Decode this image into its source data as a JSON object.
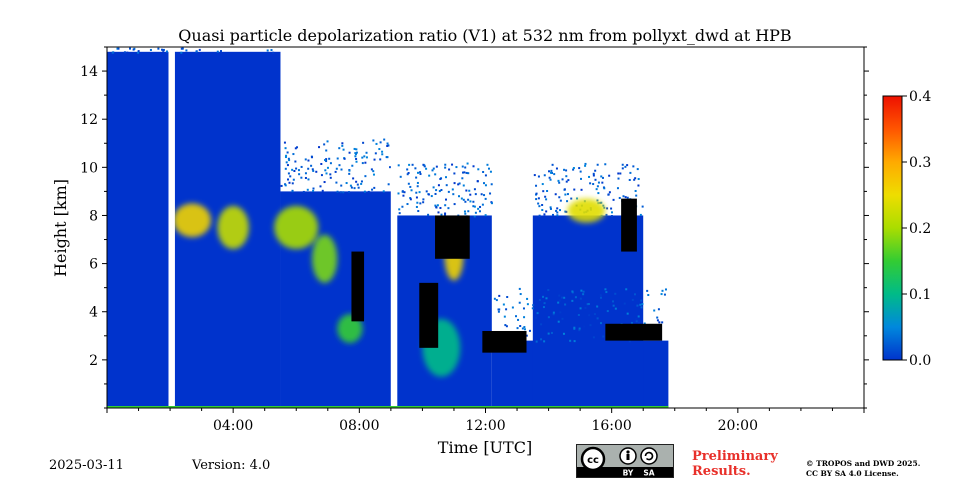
{
  "chart_data": {
    "type": "heatmap",
    "title": "Quasi particle depolarization ratio (V1) at 532 nm from pollyxt_dwd at HPB",
    "xlabel": "Time [UTC]",
    "ylabel": "Height [km]",
    "x_ticks": [
      "04:00",
      "08:00",
      "12:00",
      "16:00",
      "20:00"
    ],
    "y_ticks": [
      "2",
      "4",
      "6",
      "8",
      "10",
      "12",
      "14"
    ],
    "xlim_hours": [
      0,
      24
    ],
    "ylim_km": [
      0,
      15
    ],
    "colorbar": {
      "ticks": [
        "0.0",
        "0.1",
        "0.2",
        "0.3",
        "0.4"
      ],
      "range": [
        0.0,
        0.4
      ],
      "colormap": [
        "#0033cc",
        "#0088dd",
        "#00bb88",
        "#33cc33",
        "#aadd00",
        "#eedd00",
        "#ffaa00",
        "#ff5500",
        "#ee1100"
      ]
    },
    "data_gaps_utc": [
      [
        1.95,
        2.15
      ],
      [
        9.0,
        9.2
      ]
    ],
    "data_end_utc": 17.8,
    "regions": [
      {
        "t0": 0.0,
        "t1": 1.95,
        "h0": 0.0,
        "h1": 14.8,
        "value": 0.0
      },
      {
        "t0": 2.15,
        "t1": 5.5,
        "h0": 0.0,
        "h1": 14.8,
        "value": 0.0
      },
      {
        "t0": 5.5,
        "t1": 9.0,
        "h0": 0.0,
        "h1": 9.0,
        "value": 0.0
      },
      {
        "t0": 9.2,
        "t1": 12.2,
        "h0": 0.0,
        "h1": 8.0,
        "value": 0.0
      },
      {
        "t0": 12.2,
        "t1": 17.8,
        "h0": 0.0,
        "h1": 2.8,
        "value": 0.0
      },
      {
        "t0": 13.5,
        "t1": 17.0,
        "h0": 0.0,
        "h1": 8.0,
        "value": 0.0
      }
    ],
    "layers": [
      {
        "t": 2.7,
        "h": 7.8,
        "rt": 0.6,
        "rh": 0.7,
        "value": 0.26
      },
      {
        "t": 4.0,
        "h": 7.5,
        "rt": 0.5,
        "rh": 0.9,
        "value": 0.22
      },
      {
        "t": 6.0,
        "h": 7.5,
        "rt": 0.7,
        "rh": 0.9,
        "value": 0.2
      },
      {
        "t": 6.9,
        "h": 6.2,
        "rt": 0.4,
        "rh": 1.0,
        "value": 0.18
      },
      {
        "t": 7.7,
        "h": 3.3,
        "rt": 0.4,
        "rh": 0.6,
        "value": 0.15
      },
      {
        "t": 11.0,
        "h": 6.3,
        "rt": 0.3,
        "rh": 1.0,
        "value": 0.26
      },
      {
        "t": 10.6,
        "h": 2.5,
        "rt": 0.6,
        "rh": 1.2,
        "value": 0.1
      },
      {
        "t": 15.2,
        "h": 8.2,
        "rt": 0.6,
        "rh": 0.5,
        "value": 0.24
      }
    ],
    "no_signal_clouds": [
      {
        "t0": 7.75,
        "t1": 8.15,
        "h0": 3.6,
        "h1": 6.5
      },
      {
        "t0": 10.4,
        "t1": 11.5,
        "h0": 6.2,
        "h1": 8.0
      },
      {
        "t0": 9.9,
        "t1": 10.5,
        "h0": 2.5,
        "h1": 5.2
      },
      {
        "t0": 11.9,
        "t1": 13.3,
        "h0": 2.3,
        "h1": 3.2
      },
      {
        "t0": 15.8,
        "t1": 17.6,
        "h0": 2.8,
        "h1": 3.5
      },
      {
        "t0": 16.3,
        "t1": 16.8,
        "h0": 6.5,
        "h1": 8.7
      }
    ]
  },
  "footer": {
    "date": "2025-03-11",
    "version": "Version: 4.0",
    "preliminary_line1": "Preliminary",
    "preliminary_line2": "Results.",
    "copyright_line1": "© TROPOS and DWD 2025.",
    "copyright_line2": "CC BY SA 4.0 License.",
    "license_badge": {
      "by": "BY",
      "sa": "SA"
    }
  }
}
